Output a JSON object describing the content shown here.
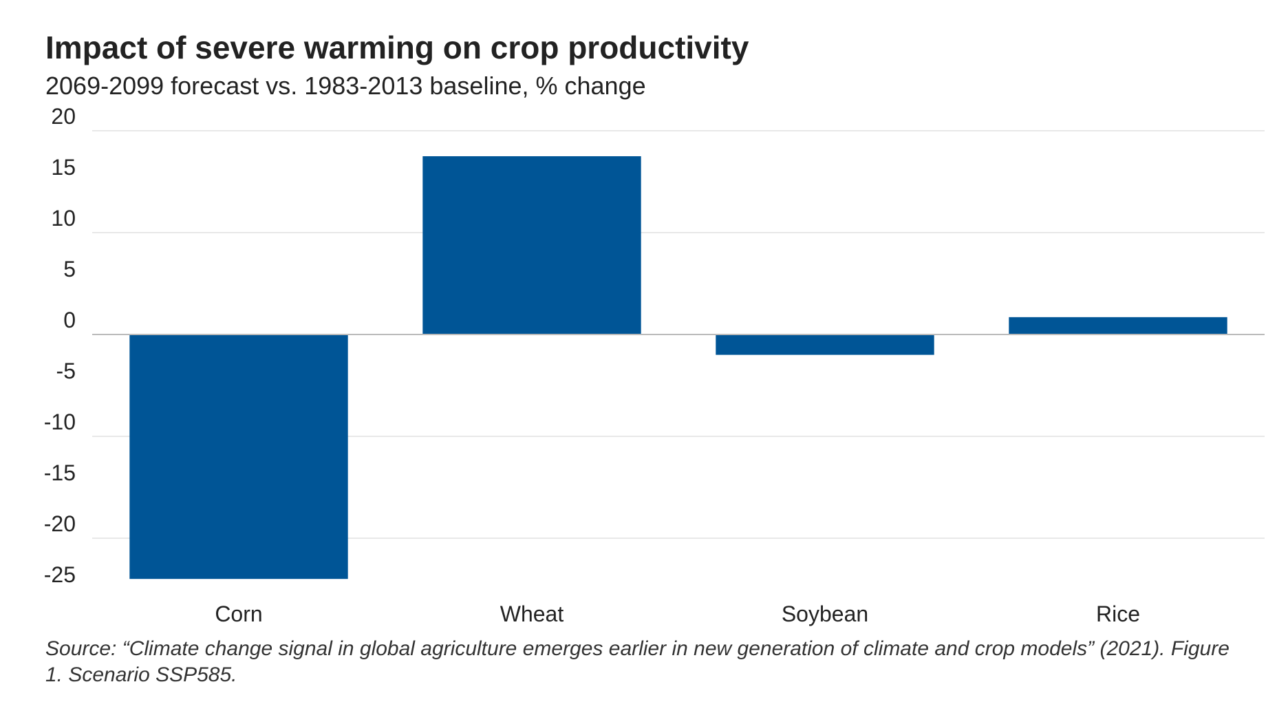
{
  "title": "Impact of severe warming on crop productivity",
  "subtitle": "2069-2099 forecast vs. 1983-2013 baseline, % change",
  "source": "Source: “Climate change signal in global agriculture emerges earlier in new generation of climate and crop models” (2021). Figure 1. Scenario SSP585.",
  "colors": {
    "bar": "#005596",
    "grid": "#e8e8e8",
    "zero_line": "#bbbbbb",
    "text": "#222222"
  },
  "chart_data": {
    "type": "bar",
    "categories": [
      "Corn",
      "Wheat",
      "Soybean",
      "Rice"
    ],
    "values": [
      -24,
      17.5,
      -2,
      1.7
    ],
    "ylim": [
      -25,
      20
    ],
    "yticks": [
      20,
      15,
      10,
      5,
      0,
      -5,
      -10,
      -15,
      -20,
      -25
    ],
    "ytick_labels": [
      "20",
      "15",
      "10",
      "5",
      "0",
      "-5",
      "-10",
      "-15",
      "-20",
      "-25"
    ],
    "gridlines": [
      20,
      10,
      -10,
      -20
    ],
    "grid": true,
    "legend": "none",
    "xlabel": "",
    "ylabel": ""
  }
}
